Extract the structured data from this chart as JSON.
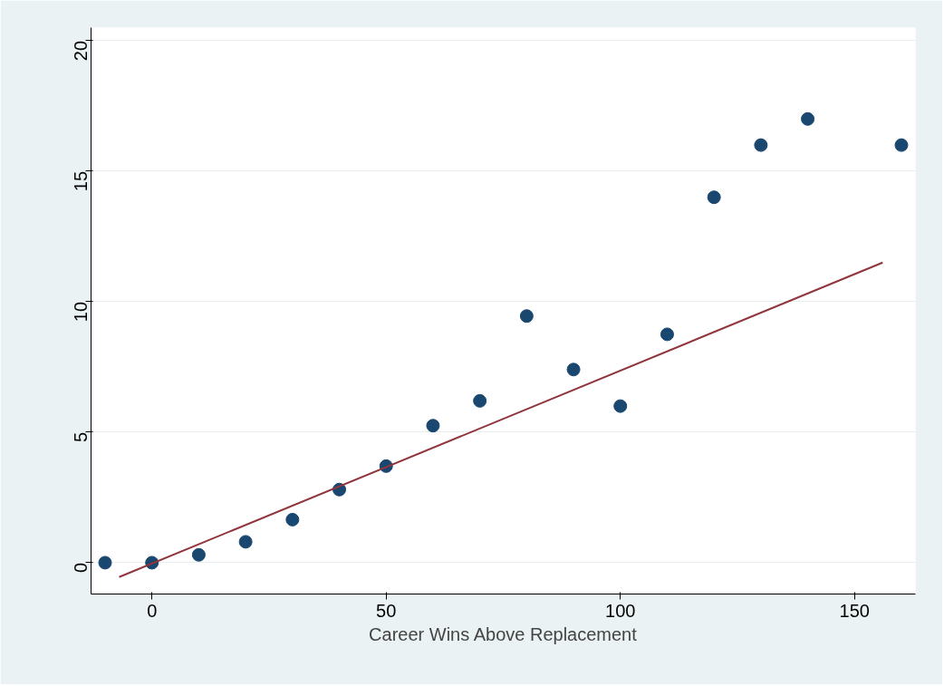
{
  "chart_data": {
    "type": "scatter",
    "xlabel": "Career Wins Above Replacement",
    "series": [
      {
        "color": "#1a476f",
        "marker": "circle",
        "x": [
          -10,
          0,
          10,
          20,
          30,
          40,
          50,
          60,
          70,
          80,
          90,
          100,
          110,
          120,
          130,
          140,
          160
        ],
        "values": [
          0,
          0,
          0.3,
          0.8,
          1.65,
          2.8,
          3.7,
          5.25,
          6.2,
          9.45,
          7.4,
          6.0,
          8.75,
          14.0,
          16.0,
          17.0,
          16.0
        ]
      },
      {
        "type": "line",
        "color": "#90353b",
        "marker": "none",
        "x": [
          -7,
          156
        ],
        "values": [
          -0.55,
          11.5
        ]
      }
    ],
    "xlim": [
      -13,
      163
    ],
    "ylim": [
      -1.2,
      20.5
    ],
    "xticks": [
      0,
      50,
      100,
      150
    ],
    "yticks": [
      0,
      5,
      10,
      15,
      20
    ],
    "grid": "y"
  }
}
